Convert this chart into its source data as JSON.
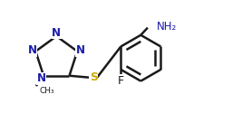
{
  "background_color": "#ffffff",
  "line_color": "#1a1a1a",
  "label_color_N": "#1a1aaa",
  "label_color_S": "#ccaa00",
  "label_color_F": "#1a1a1a",
  "line_width": 1.8,
  "figsize": [
    2.67,
    1.36
  ],
  "dpi": 100,
  "xlim": [
    0,
    10.5
  ],
  "ylim": [
    0,
    5.2
  ]
}
